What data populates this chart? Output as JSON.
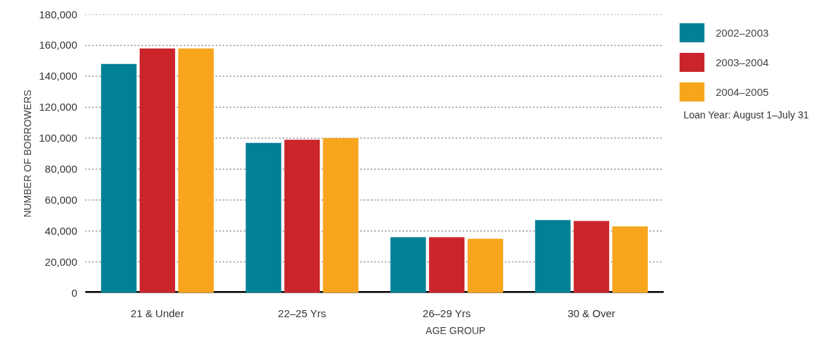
{
  "chart_data": {
    "type": "bar",
    "xlabel": "AGE GROUP",
    "ylabel": "NUMBER OF BORROWERS",
    "categories": [
      "21 & Under",
      "22–25 Yrs",
      "26–29 Yrs",
      "30 & Over"
    ],
    "series": [
      {
        "name": "2002–2003",
        "color": "#008196",
        "values": [
          148000,
          97000,
          36000,
          47000
        ]
      },
      {
        "name": "2003–2004",
        "color": "#cb252c",
        "values": [
          158000,
          99000,
          36000,
          46500
        ]
      },
      {
        "name": "2004–2005",
        "color": "#f7a51c",
        "values": [
          158000,
          100000,
          35000,
          43000
        ]
      }
    ],
    "ylim": [
      0,
      180000
    ],
    "yticks": [
      {
        "value": 0,
        "label": "0"
      },
      {
        "value": 20000,
        "label": "20,000"
      },
      {
        "value": 40000,
        "label": "40,000"
      },
      {
        "value": 60000,
        "label": "60,000"
      },
      {
        "value": 80000,
        "label": "80,000"
      },
      {
        "value": 100000,
        "label": "100,000"
      },
      {
        "value": 120000,
        "label": "120,000"
      },
      {
        "value": 140000,
        "label": "140,000"
      },
      {
        "value": 160000,
        "label": "160,000"
      },
      {
        "value": 180000,
        "label": "180,000"
      }
    ],
    "grid": "y",
    "legend": "top right",
    "annotations": [
      "Loan Year: August 1–July 31"
    ]
  }
}
